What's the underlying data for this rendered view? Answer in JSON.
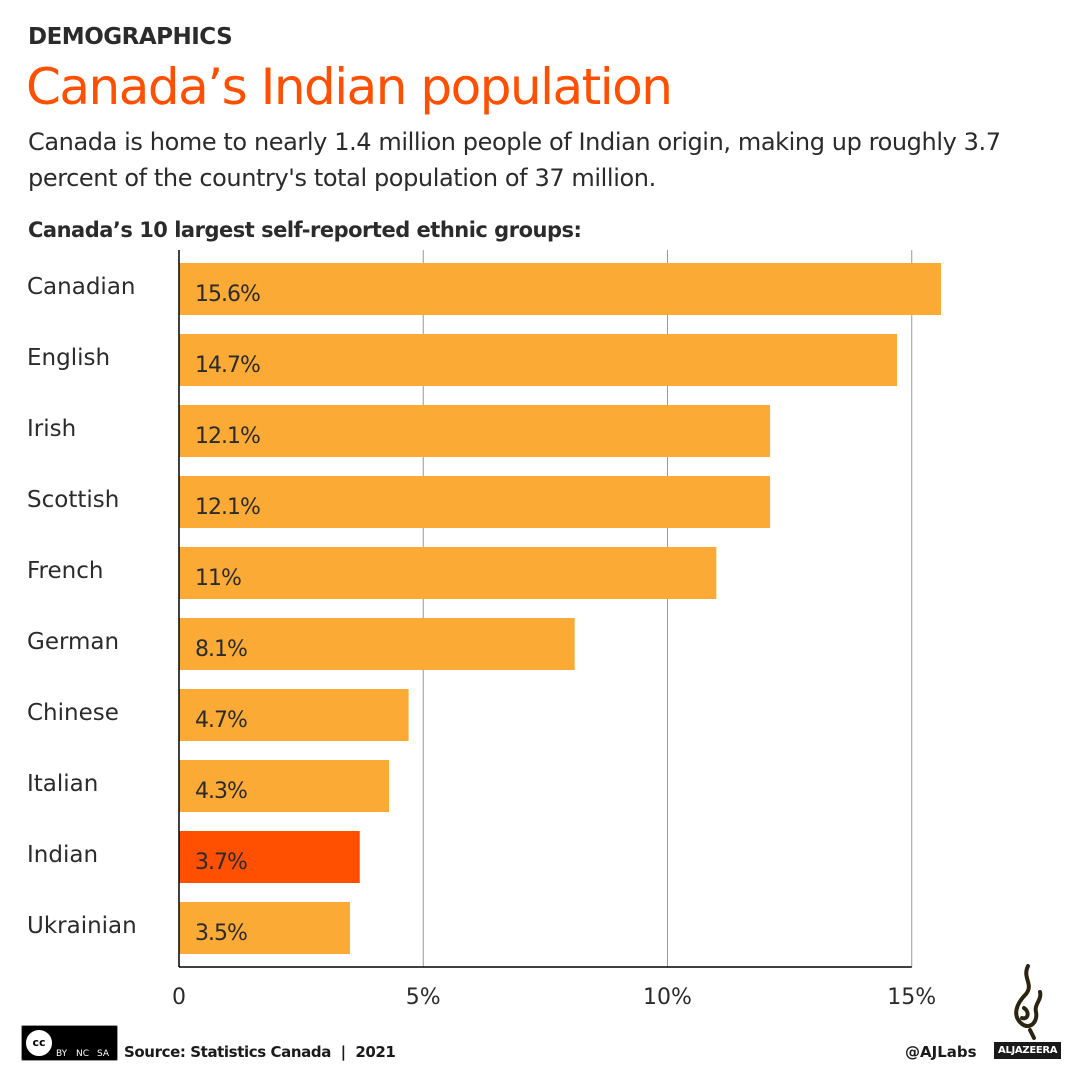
{
  "header": {
    "kicker": "DEMOGRAPHICS",
    "title": "Canada’s Indian population",
    "subtitle": "Canada is home to nearly 1.4 million people of Indian origin, making up roughly 3.7 percent of the country's total population of 37 million."
  },
  "chart_data": {
    "type": "bar",
    "orientation": "horizontal",
    "title": "Canada’s 10 largest self-reported ethnic groups:",
    "categories": [
      "Canadian",
      "English",
      "Irish",
      "Scottish",
      "French",
      "German",
      "Chinese",
      "Italian",
      "Indian",
      "Ukrainian"
    ],
    "values": [
      15.6,
      14.7,
      12.1,
      12.1,
      11,
      8.1,
      4.7,
      4.3,
      3.7,
      3.5
    ],
    "data_labels": [
      "15.6%",
      "14.7%",
      "12.1%",
      "12.1%",
      "11%",
      "8.1%",
      "4.7%",
      "4.3%",
      "3.7%",
      "3.5%"
    ],
    "highlight": "Indian",
    "xlim": [
      0,
      15.6
    ],
    "xticks": [
      0,
      5,
      10,
      15
    ],
    "xtick_labels": [
      "0",
      "5%",
      "10%",
      "15%"
    ],
    "grid": true,
    "colors": {
      "bar": "#fbab35",
      "highlight": "#fe5000",
      "title": "#fe5000"
    }
  },
  "footer": {
    "source": "Source: Statistics Canada  |  2021",
    "license": [
      "cc",
      "BY",
      "NC",
      "SA"
    ],
    "handle": "@AJLabs",
    "brand": "ALJAZEERA"
  }
}
